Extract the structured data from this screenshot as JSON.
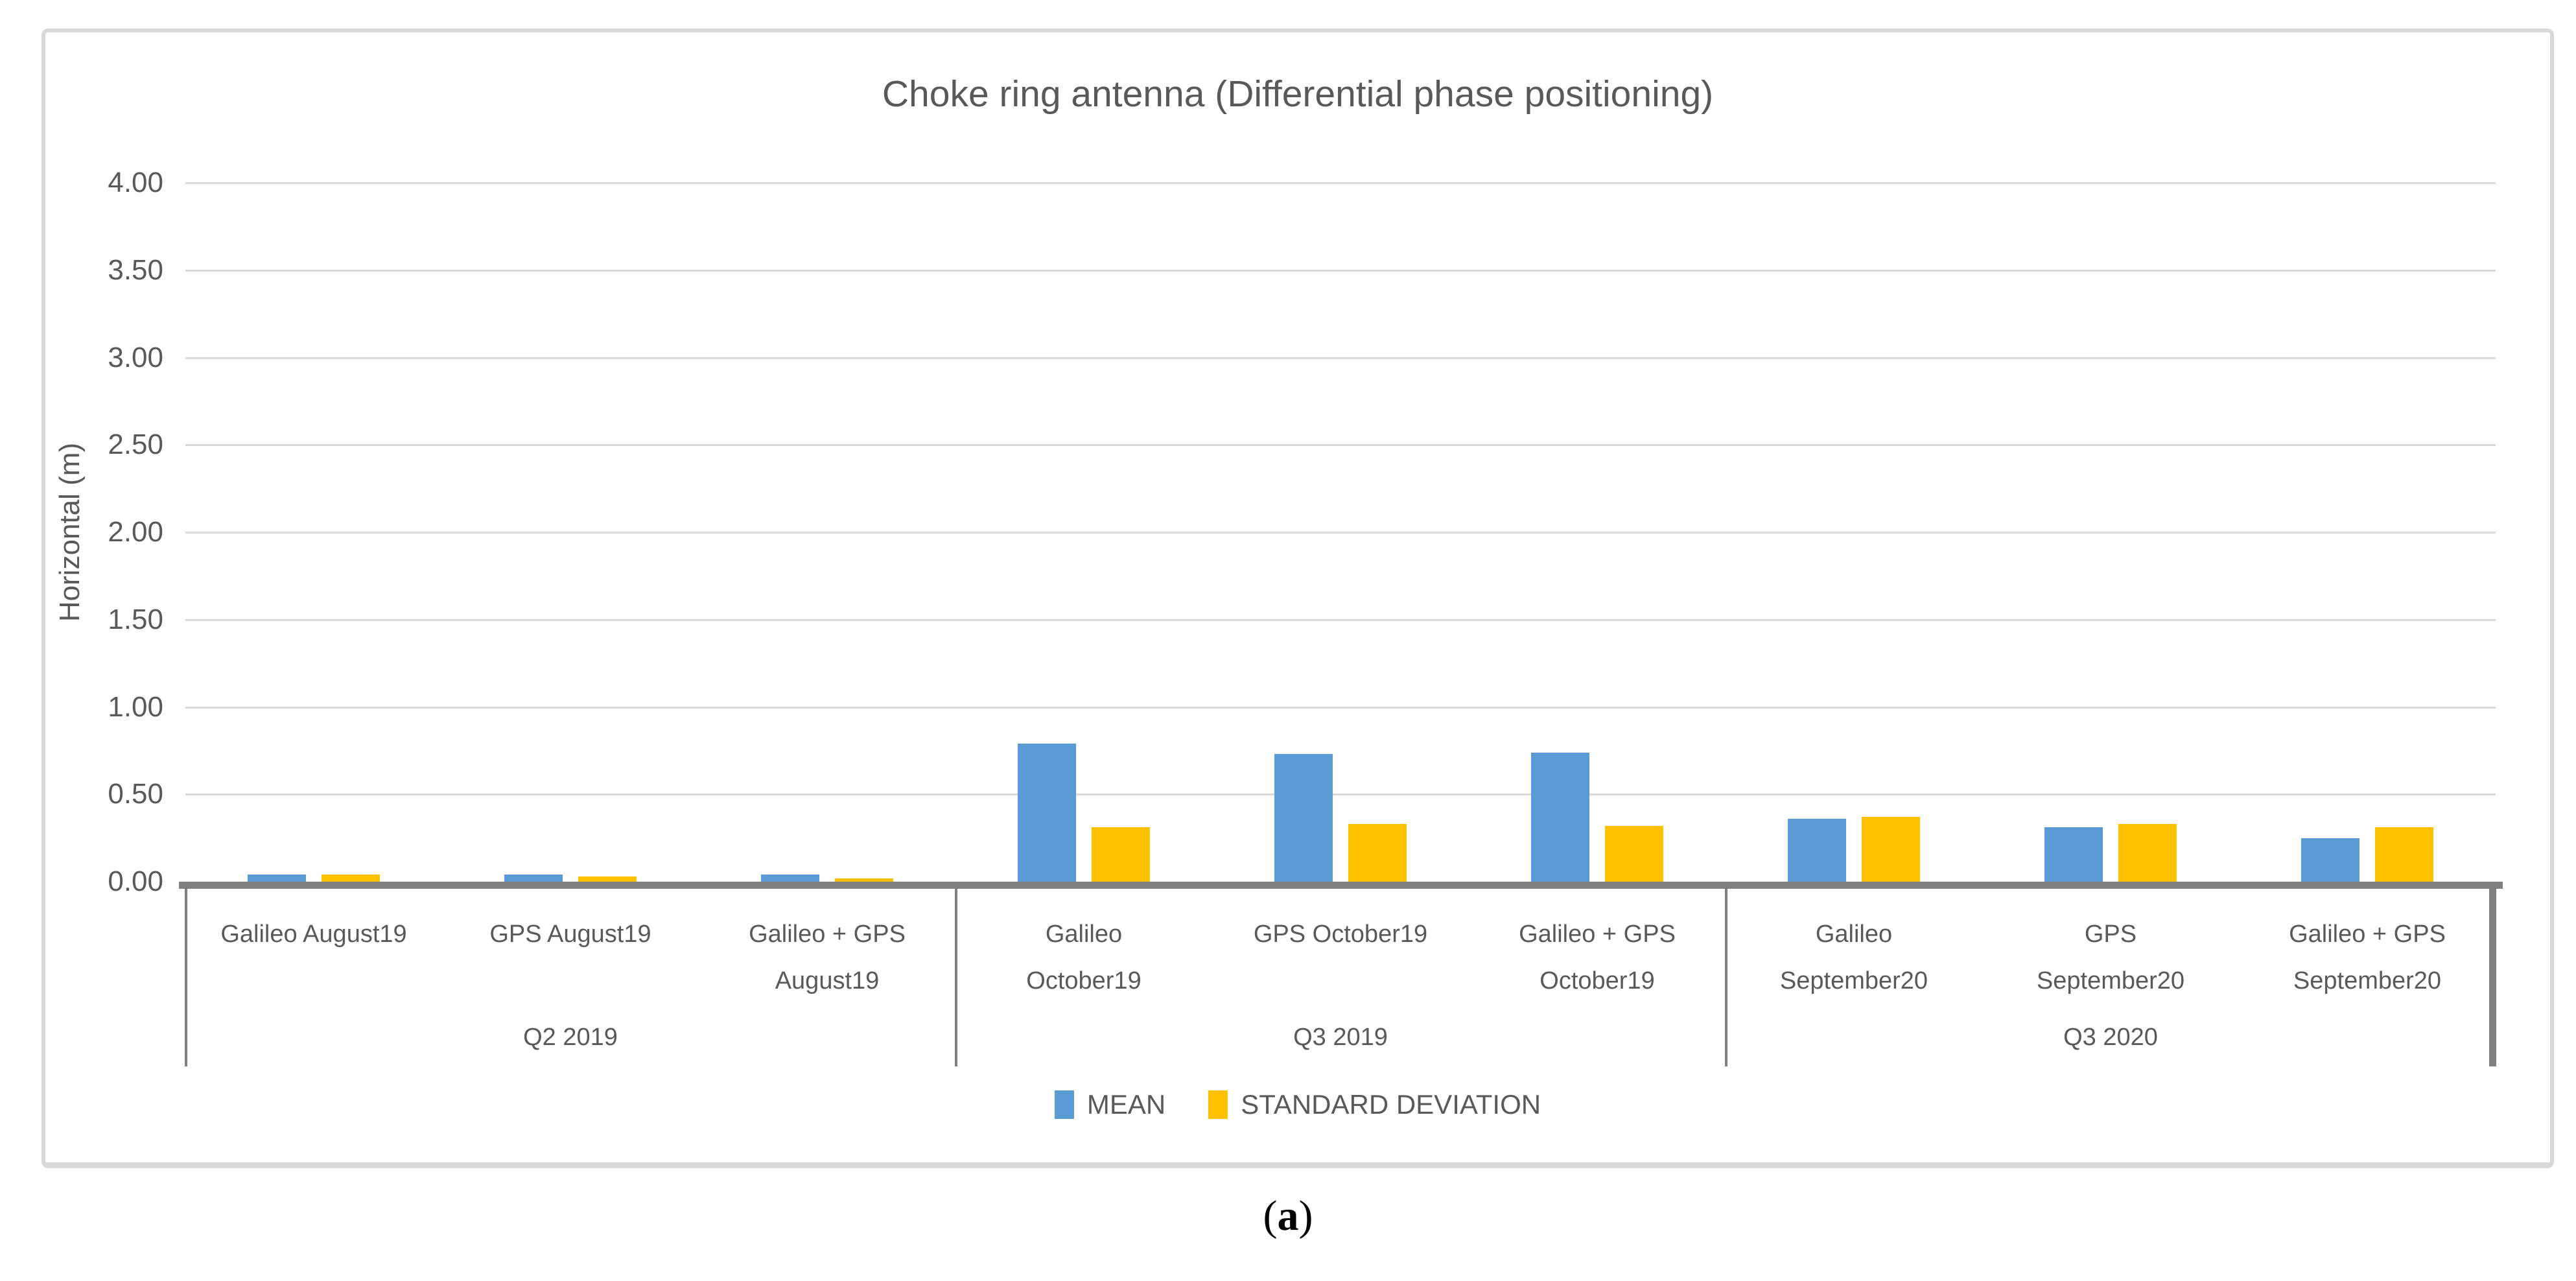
{
  "chart_data": {
    "type": "bar",
    "title": "Choke ring antenna (Differential phase positioning)",
    "ylabel": "Horizontal (m)",
    "ylim": [
      0,
      4.0
    ],
    "ytick_step": 0.5,
    "ytick_labels": [
      "0.00",
      "0.50",
      "1.00",
      "1.50",
      "2.00",
      "2.50",
      "3.00",
      "3.50",
      "4.00"
    ],
    "grid": true,
    "legend_position": "bottom",
    "categories": [
      "Galileo August19",
      "GPS August19",
      "Galileo + GPS August19",
      "Galileo October19",
      "GPS October19",
      "Galileo + GPS October19",
      "Galileo September20",
      "GPS September20",
      "Galileo + GPS September20"
    ],
    "category_label_lines": [
      [
        "Galileo August19"
      ],
      [
        "GPS August19"
      ],
      [
        "Galileo + GPS",
        "August19"
      ],
      [
        "Galileo",
        "October19"
      ],
      [
        "GPS October19"
      ],
      [
        "Galileo + GPS",
        "October19"
      ],
      [
        "Galileo",
        "September20"
      ],
      [
        "GPS",
        "September20"
      ],
      [
        "Galileo + GPS",
        "September20"
      ]
    ],
    "groups": [
      {
        "label": "Q2 2019",
        "span": 3
      },
      {
        "label": "Q3 2019",
        "span": 3
      },
      {
        "label": "Q3 2020",
        "span": 3
      }
    ],
    "series": [
      {
        "name": "MEAN",
        "color": "#5B9BD5",
        "values": [
          0.04,
          0.04,
          0.04,
          0.79,
          0.73,
          0.74,
          0.36,
          0.31,
          0.25
        ]
      },
      {
        "name": "STANDARD DEVIATION",
        "color": "#FFC000",
        "values": [
          0.04,
          0.03,
          0.02,
          0.31,
          0.33,
          0.32,
          0.37,
          0.33,
          0.31
        ]
      }
    ],
    "colors": {
      "axis_line": "#808080",
      "gridline": "#D9D9D9",
      "text": "#595959",
      "frame_border": "#D9D9D9"
    }
  },
  "caption": {
    "open": "(",
    "letter": "a",
    "close": ")"
  }
}
